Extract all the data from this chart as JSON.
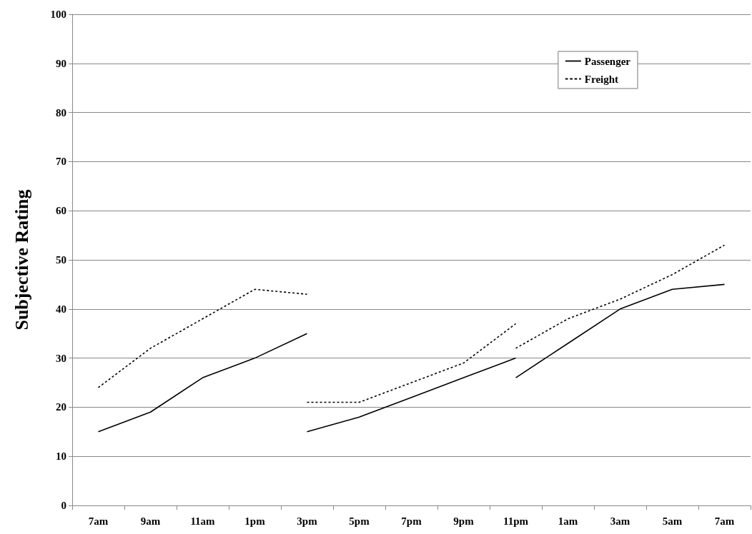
{
  "chart_data": {
    "type": "line",
    "ylabel": "Subjective Rating",
    "categories": [
      "7am",
      "9am",
      "11am",
      "1pm",
      "3pm",
      "5pm",
      "7pm",
      "9pm",
      "11pm",
      "1am",
      "3am",
      "5am",
      "7am"
    ],
    "ylim": [
      0,
      100
    ],
    "yticks": [
      0,
      10,
      20,
      30,
      40,
      50,
      60,
      70,
      80,
      90,
      100
    ],
    "grid": "y",
    "legend": "top right",
    "marker": "none",
    "series": [
      {
        "name": "Passenger",
        "color": "#000000",
        "line_style": "solid",
        "values": [
          15,
          19,
          26,
          30,
          35,
          null,
          null,
          null,
          null,
          null,
          null,
          null,
          null
        ]
      },
      {
        "color": "#000000",
        "line_style": "solid",
        "values": [
          null,
          null,
          null,
          null,
          15,
          18,
          22,
          26,
          30,
          null,
          null,
          null,
          null
        ]
      },
      {
        "color": "#000000",
        "line_style": "solid",
        "values": [
          null,
          null,
          null,
          null,
          null,
          null,
          null,
          null,
          26,
          33,
          40,
          44,
          45
        ]
      },
      {
        "name": "Freight",
        "color": "#000000",
        "line_style": "dashed",
        "values": [
          24,
          32,
          38,
          44,
          43,
          null,
          null,
          null,
          null,
          null,
          null,
          null,
          null
        ]
      },
      {
        "color": "#000000",
        "line_style": "dashed",
        "values": [
          null,
          null,
          null,
          null,
          21,
          21,
          25,
          29,
          37,
          null,
          null,
          null,
          null
        ]
      },
      {
        "color": "#000000",
        "line_style": "dashed",
        "values": [
          null,
          null,
          null,
          null,
          null,
          null,
          null,
          null,
          32,
          38,
          42,
          47,
          53
        ]
      }
    ]
  }
}
